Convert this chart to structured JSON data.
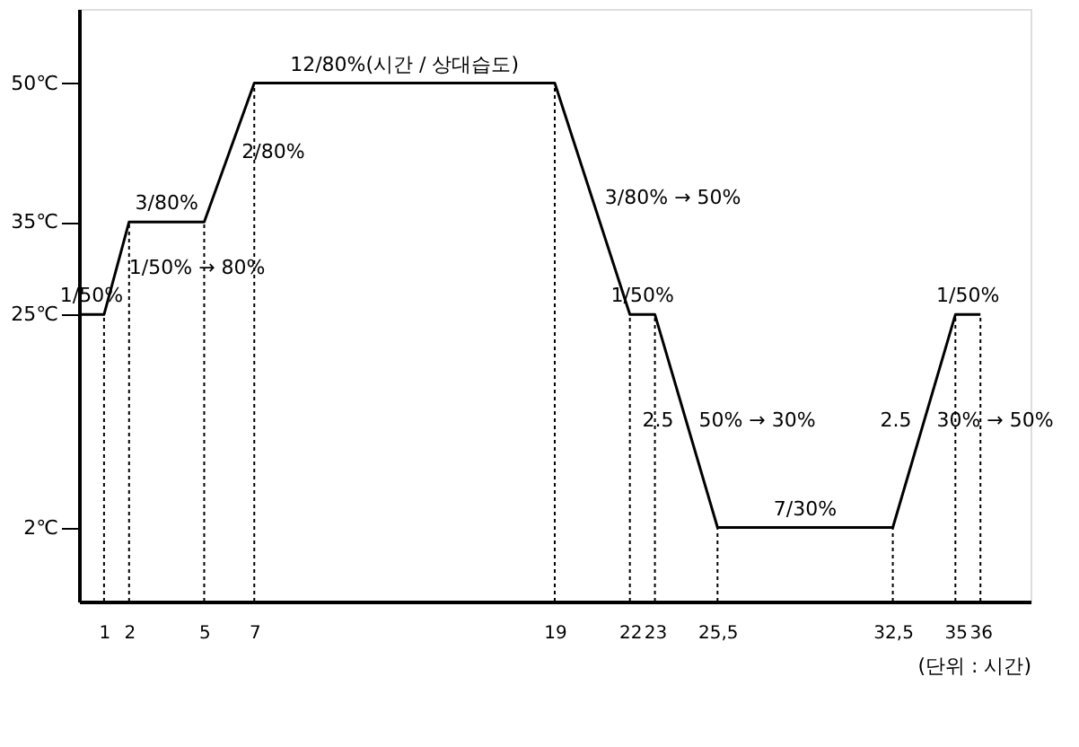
{
  "chart_data": {
    "type": "line",
    "xlabel": "(단위 : 시간)",
    "x": [
      0,
      1,
      2,
      5,
      7,
      19,
      22,
      23,
      25.5,
      32.5,
      35,
      36
    ],
    "series": [
      {
        "color": "#000000",
        "values": [
          25,
          25,
          35,
          35,
          50,
          50,
          25,
          25,
          2,
          2,
          25,
          25
        ]
      }
    ],
    "xlim": [
      0,
      38
    ],
    "xticks": [
      1,
      2,
      5,
      7,
      19,
      22,
      23,
      {
        "value": 25.5,
        "label": "25,5"
      },
      {
        "value": 32.5,
        "label": "32,5"
      },
      35,
      36
    ],
    "ylim": [
      -6,
      58
    ],
    "yticks": [
      {
        "value": 2,
        "label": "2℃"
      },
      {
        "value": 25,
        "label": "25℃"
      },
      {
        "value": 35,
        "label": "35℃"
      },
      {
        "value": 50,
        "label": "50℃"
      }
    ],
    "ref_lines": [
      {
        "axis": "x",
        "value": 1,
        "line_style": "dotted"
      },
      {
        "axis": "x",
        "value": 2,
        "line_style": "dotted"
      },
      {
        "axis": "x",
        "value": 5,
        "line_style": "dotted"
      },
      {
        "axis": "x",
        "value": 7,
        "line_style": "dotted"
      },
      {
        "axis": "x",
        "value": 19,
        "line_style": "dotted"
      },
      {
        "axis": "x",
        "value": 22,
        "line_style": "dotted"
      },
      {
        "axis": "x",
        "value": 23,
        "line_style": "dotted"
      },
      {
        "axis": "x",
        "value": 25.5,
        "line_style": "dotted"
      },
      {
        "axis": "x",
        "value": 32.5,
        "line_style": "dotted"
      },
      {
        "axis": "x",
        "value": 35,
        "line_style": "dotted"
      },
      {
        "axis": "x",
        "value": 36,
        "line_style": "dotted"
      }
    ],
    "annotations": [
      {
        "text": "1/50%",
        "x": 0.5,
        "y": 25
      },
      {
        "text": "1/50% → 80%",
        "x": 1.5,
        "y": 30
      },
      {
        "text": "3/80%",
        "x": 3.5,
        "y": 35
      },
      {
        "text": "2/80%",
        "x": 6,
        "y": 42.5
      },
      {
        "text": "12/80%(시간 / 상대습도)",
        "x": 13,
        "y": 50
      },
      {
        "text": "3/80% → 50%",
        "x": 20.5,
        "y": 37.5
      },
      {
        "text": "1/50%",
        "x": 22.5,
        "y": 25
      },
      {
        "text": "2.5",
        "x": 24.25,
        "y": 13.5
      },
      {
        "text": "50% → 30%",
        "x": 24.25,
        "y": 13.5
      },
      {
        "text": "7/30%",
        "x": 29,
        "y": 2
      },
      {
        "text": "2.5",
        "x": 33.75,
        "y": 13.5
      },
      {
        "text": "30% → 50%",
        "x": 33.75,
        "y": 13.5
      },
      {
        "text": "1/50%",
        "x": 35.5,
        "y": 25
      }
    ],
    "grid": false,
    "marker": "none",
    "line_style": "solid"
  }
}
